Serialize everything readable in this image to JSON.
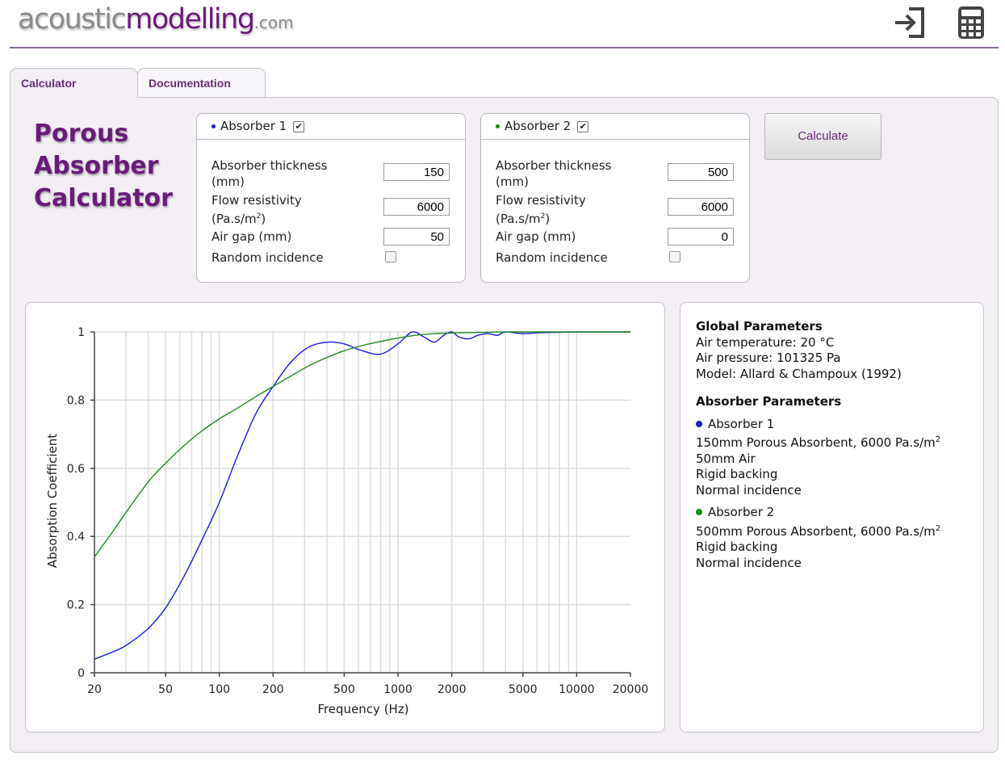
{
  "header": {
    "logo": {
      "part1": "acoustic",
      "part2": "modelling",
      "part3": ".com"
    },
    "icons": [
      "sign-in-icon",
      "calculator-icon"
    ]
  },
  "tabs": [
    {
      "label": "Calculator",
      "active": true
    },
    {
      "label": "Documentation",
      "active": false
    }
  ],
  "page_title": {
    "line1": "Porous",
    "line2": "Absorber",
    "line3": "Calculator"
  },
  "absorbers": [
    {
      "label": "Absorber 1",
      "color": "#1a1ae6",
      "enabled": true,
      "thickness_label_1": "Absorber thickness",
      "thickness_label_2": "(mm)",
      "thickness": "150",
      "flow_label_1": "Flow resistivity",
      "flow_label_2": "(Pa.s/m",
      "flow_label_sup": "2",
      "flow_label_end": ")",
      "flow": "6000",
      "airgap_label": "Air gap (mm)",
      "airgap": "50",
      "random_label": "Random incidence",
      "random": false
    },
    {
      "label": "Absorber 2",
      "color": "#1f8a1f",
      "enabled": true,
      "thickness_label_1": "Absorber thickness",
      "thickness_label_2": "(mm)",
      "thickness": "500",
      "flow_label_1": "Flow resistivity",
      "flow_label_2": "(Pa.s/m",
      "flow_label_sup": "2",
      "flow_label_end": ")",
      "flow": "6000",
      "airgap_label": "Air gap (mm)",
      "airgap": "0",
      "random_label": "Random incidence",
      "random": false
    }
  ],
  "calculate_button": "Calculate",
  "global_params": {
    "heading": "Global Parameters",
    "temperature": "Air temperature: 20 °C",
    "pressure": "Air pressure: 101325 Pa",
    "model": "Model: Allard & Champoux (1992)"
  },
  "absorber_params": {
    "heading": "Absorber Parameters",
    "items": [
      {
        "name": "Absorber 1",
        "lines": [
          "150mm Porous Absorbent, 6000 Pa.s/m",
          "50mm Air",
          "Rigid backing",
          "Normal incidence"
        ],
        "sup": "2"
      },
      {
        "name": "Absorber 2",
        "lines": [
          "500mm Porous Absorbent, 6000 Pa.s/m",
          "Rigid backing",
          "Normal incidence"
        ],
        "sup": "2"
      }
    ]
  },
  "chart_data": {
    "type": "line",
    "title": "",
    "xlabel": "Frequency (Hz)",
    "ylabel": "Absorption Coefficient",
    "xscale": "log",
    "xlim": [
      20,
      20000
    ],
    "ylim": [
      0,
      1
    ],
    "x_ticks": [
      20,
      50,
      100,
      200,
      500,
      1000,
      2000,
      5000,
      10000,
      20000
    ],
    "y_ticks": [
      "0",
      "0.2",
      "0.4",
      "0.6",
      "0.8",
      "1"
    ],
    "grid": true,
    "series": [
      {
        "color": "#1a1ae6",
        "x": [
          20,
          25,
          30,
          40,
          50,
          63,
          80,
          100,
          125,
          160,
          200,
          250,
          315,
          400,
          500,
          630,
          800,
          1000,
          1200,
          1400,
          1600,
          1800,
          2000,
          2200,
          2500,
          2800,
          3200,
          3600,
          4000,
          5000,
          6300,
          8000,
          10000,
          16000,
          20000
        ],
        "y": [
          0.04,
          0.06,
          0.08,
          0.13,
          0.19,
          0.28,
          0.39,
          0.5,
          0.63,
          0.76,
          0.84,
          0.91,
          0.955,
          0.97,
          0.965,
          0.945,
          0.935,
          0.965,
          1.0,
          0.985,
          0.97,
          0.99,
          1.0,
          0.985,
          0.98,
          0.99,
          0.995,
          0.99,
          1.0,
          0.995,
          0.998,
          0.999,
          1.0,
          1.0,
          1.0
        ]
      },
      {
        "color": "#1f8a1f",
        "x": [
          20,
          25,
          30,
          40,
          50,
          63,
          80,
          100,
          125,
          160,
          200,
          250,
          315,
          400,
          500,
          630,
          800,
          1000,
          1250,
          1600,
          2000,
          2500,
          3150,
          4000,
          5000,
          8000,
          10000,
          20000
        ],
        "y": [
          0.34,
          0.41,
          0.47,
          0.56,
          0.615,
          0.665,
          0.71,
          0.745,
          0.775,
          0.81,
          0.84,
          0.87,
          0.9,
          0.925,
          0.945,
          0.96,
          0.972,
          0.982,
          0.99,
          0.995,
          0.997,
          0.998,
          0.999,
          1.0,
          1.0,
          1.0,
          1.0,
          1.0
        ]
      }
    ]
  }
}
